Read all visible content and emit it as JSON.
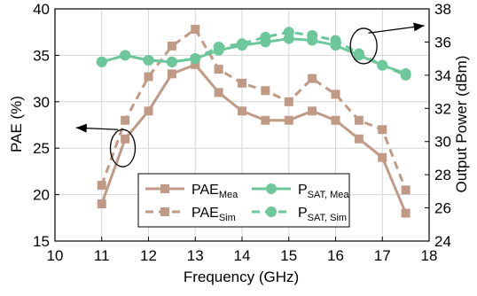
{
  "chart_data": {
    "type": "line",
    "xlabel": "Frequency (GHz)",
    "ylabel_left": "PAE (%)",
    "ylabel_right": "Output Power (dBm)",
    "xlim": [
      10,
      18
    ],
    "ylim_left": [
      15,
      40
    ],
    "ylim_right": [
      24,
      38
    ],
    "x_ticks": [
      10,
      11,
      12,
      13,
      14,
      15,
      16,
      17,
      18
    ],
    "y_ticks_left": [
      15,
      20,
      25,
      30,
      35,
      40
    ],
    "y_ticks_right": [
      24,
      26,
      28,
      30,
      32,
      34,
      36,
      38
    ],
    "grid": true,
    "legend_position": "bottom-center",
    "colors": {
      "pae": "#c09a85",
      "psat": "#6cc79a"
    },
    "x": [
      11,
      11.5,
      12,
      12.5,
      13,
      13.5,
      14,
      14.5,
      15,
      15.5,
      16,
      16.5,
      17,
      17.5
    ],
    "series": [
      {
        "name_main": "PAE",
        "name_sub": "Mea",
        "axis": "left",
        "style": "solid",
        "marker": "square",
        "values": [
          19,
          26,
          29,
          33,
          34,
          31,
          29,
          28,
          28,
          29,
          28,
          26,
          24,
          18
        ]
      },
      {
        "name_main": "PAE",
        "name_sub": "Sim",
        "axis": "left",
        "style": "dashed",
        "marker": "square",
        "values": [
          21,
          28,
          32.7,
          36,
          37.8,
          33.5,
          32,
          31.2,
          30,
          32.5,
          30.8,
          28,
          27,
          20.5
        ]
      },
      {
        "name_main": "P",
        "name_sub": "SAT, Mea",
        "axis": "right",
        "style": "solid",
        "marker": "circle",
        "values": [
          34.8,
          35.2,
          34.9,
          34.8,
          35,
          35.5,
          35.8,
          36,
          36.2,
          36.1,
          35.8,
          35.2,
          34.6,
          34.1
        ]
      },
      {
        "name_main": "P",
        "name_sub": "SAT, Sim",
        "axis": "right",
        "style": "dashed",
        "marker": "circle",
        "values": [
          34.8,
          35.2,
          34.9,
          34.8,
          35,
          35.7,
          35.9,
          36.3,
          36.6,
          36.4,
          36.1,
          35.3,
          34.6,
          34
        ]
      }
    ]
  }
}
